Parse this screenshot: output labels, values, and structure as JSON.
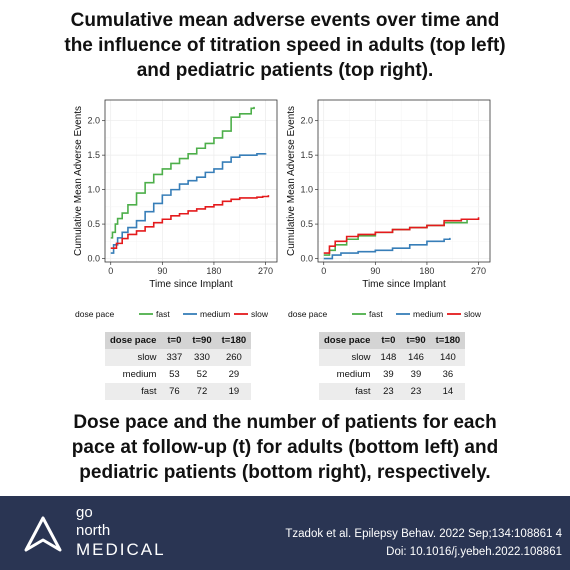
{
  "header": {
    "title_lines": [
      "Cumulative mean adverse events over time and",
      "the influence of titration speed in adults (top left)",
      "and pediatric patients (top right)."
    ]
  },
  "subheader": {
    "text_lines": [
      "Dose pace and the number of patients for each",
      "pace at follow-up (t) for adults (bottom left) and",
      "pediatric patients (bottom right), respectively."
    ]
  },
  "colors": {
    "fast": "#4daf4a",
    "medium": "#377eb8",
    "slow": "#e41a1c",
    "footer_bg": "#2a3553"
  },
  "chart_data": [
    {
      "type": "line",
      "xlabel": "Time since Implant",
      "ylabel": "Cumulative Mean Adverse Events",
      "xlim": [
        -10,
        290
      ],
      "ylim": [
        -0.05,
        2.3
      ],
      "xticks": [
        0,
        90,
        180,
        270
      ],
      "yticks": [
        0.0,
        0.5,
        1.0,
        1.5,
        2.0
      ],
      "xtick_labels": [
        "0",
        "90",
        "180",
        "270"
      ],
      "ytick_labels": [
        "0.0",
        "0.5",
        "1.0",
        "1.5",
        "2.0"
      ],
      "grid": true,
      "legend_title": "dose pace",
      "legend_position": "bottom",
      "series": [
        {
          "name": "fast",
          "color": "#4daf4a",
          "x": [
            0,
            3,
            8,
            12,
            20,
            30,
            45,
            60,
            75,
            90,
            105,
            120,
            135,
            150,
            165,
            180,
            195,
            210,
            225,
            235,
            245,
            250
          ],
          "y": [
            0.3,
            0.38,
            0.5,
            0.58,
            0.66,
            0.78,
            0.95,
            1.1,
            1.22,
            1.3,
            1.38,
            1.45,
            1.52,
            1.6,
            1.67,
            1.75,
            1.85,
            2.05,
            2.1,
            2.1,
            2.18,
            2.2
          ]
        },
        {
          "name": "medium",
          "color": "#377eb8",
          "x": [
            0,
            5,
            12,
            20,
            30,
            45,
            60,
            75,
            90,
            105,
            120,
            135,
            150,
            165,
            180,
            195,
            210,
            225,
            240,
            255,
            270
          ],
          "y": [
            0.08,
            0.2,
            0.3,
            0.38,
            0.45,
            0.55,
            0.68,
            0.8,
            0.92,
            1.0,
            1.08,
            1.13,
            1.18,
            1.25,
            1.3,
            1.4,
            1.47,
            1.5,
            1.5,
            1.52,
            1.53
          ]
        },
        {
          "name": "slow",
          "color": "#e41a1c",
          "x": [
            0,
            10,
            20,
            30,
            45,
            60,
            75,
            90,
            105,
            120,
            135,
            150,
            165,
            180,
            195,
            210,
            225,
            240,
            255,
            265,
            275
          ],
          "y": [
            0.15,
            0.22,
            0.29,
            0.35,
            0.4,
            0.46,
            0.52,
            0.57,
            0.62,
            0.65,
            0.69,
            0.72,
            0.75,
            0.78,
            0.83,
            0.86,
            0.88,
            0.88,
            0.89,
            0.9,
            0.92
          ]
        }
      ]
    },
    {
      "type": "line",
      "xlabel": "Time since Implant",
      "ylabel": "Cumulative Mean Adverse Events",
      "xlim": [
        -10,
        290
      ],
      "ylim": [
        -0.05,
        2.3
      ],
      "xticks": [
        0,
        90,
        180,
        270
      ],
      "yticks": [
        0.0,
        0.5,
        1.0,
        1.5,
        2.0
      ],
      "xtick_labels": [
        "0",
        "90",
        "180",
        "270"
      ],
      "ytick_labels": [
        "0.0",
        "0.5",
        "1.0",
        "1.5",
        "2.0"
      ],
      "grid": true,
      "legend_title": "dose pace",
      "legend_position": "bottom",
      "series": [
        {
          "name": "fast",
          "color": "#4daf4a",
          "x": [
            0,
            10,
            20,
            40,
            60,
            90,
            120,
            150,
            180,
            210,
            240,
            250
          ],
          "y": [
            0.05,
            0.12,
            0.2,
            0.28,
            0.33,
            0.38,
            0.42,
            0.45,
            0.48,
            0.52,
            0.52,
            0.58
          ]
        },
        {
          "name": "medium",
          "color": "#377eb8",
          "x": [
            0,
            15,
            30,
            60,
            90,
            120,
            150,
            180,
            210,
            220
          ],
          "y": [
            0.0,
            0.05,
            0.08,
            0.1,
            0.12,
            0.15,
            0.2,
            0.25,
            0.28,
            0.3
          ]
        },
        {
          "name": "slow",
          "color": "#e41a1c",
          "x": [
            0,
            10,
            20,
            40,
            60,
            90,
            120,
            150,
            180,
            210,
            240,
            270
          ],
          "y": [
            0.08,
            0.18,
            0.25,
            0.32,
            0.35,
            0.38,
            0.42,
            0.45,
            0.48,
            0.55,
            0.57,
            0.6
          ]
        }
      ]
    }
  ],
  "tables": [
    {
      "headers": [
        "dose pace",
        "t=0",
        "t=90",
        "t=180"
      ],
      "rows": [
        [
          "slow",
          "337",
          "330",
          "260"
        ],
        [
          "medium",
          "53",
          "52",
          "29"
        ],
        [
          "fast",
          "76",
          "72",
          "19"
        ]
      ]
    },
    {
      "headers": [
        "dose pace",
        "t=0",
        "t=90",
        "t=180"
      ],
      "rows": [
        [
          "slow",
          "148",
          "146",
          "140"
        ],
        [
          "medium",
          "39",
          "39",
          "36"
        ],
        [
          "fast",
          "23",
          "23",
          "14"
        ]
      ]
    }
  ],
  "footer": {
    "logo_go": "go",
    "logo_north": "north",
    "logo_medical": "MEDICAL",
    "citation_line1": "Tzadok et al. Epilepsy Behav. 2022 Sep;134:108861 4",
    "citation_line2": "Doi: 10.1016/j.yebeh.2022.108861"
  }
}
